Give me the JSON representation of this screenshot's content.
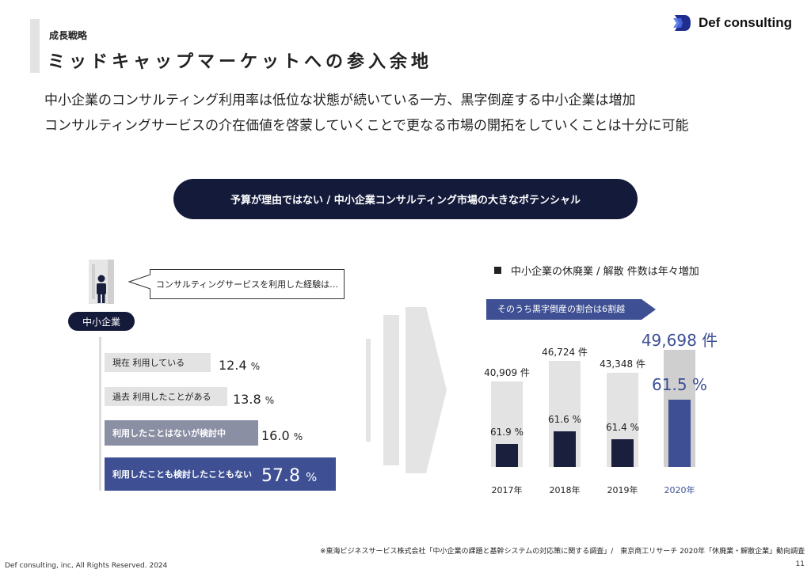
{
  "header": {
    "section": "成長戦略",
    "title": "ミッドキャップマーケットへの参入余地",
    "logo_text": "Def consulting"
  },
  "lead": {
    "line1": "中小企業のコンサルティング利用率は低位な状態が続いている一方、黒字倒産する中小企業は増加",
    "line2": "コンサルティングサービスの介在価値を啓蒙していくことで更なる市場の開拓をしていくことは十分に可能"
  },
  "pill": {
    "text": "予算が理由ではない / 中小企業コンサルティング市場の大きなポテンシャル"
  },
  "left_panel": {
    "speech": "コンサルティングサービスを利用した経験は…",
    "badge": "中小企業",
    "icon": "person-building-icon",
    "bars": [
      {
        "label": "現在 利用している",
        "value": "12.4",
        "unit": "%",
        "share": 12.4
      },
      {
        "label": "過去 利用したことがある",
        "value": "13.8",
        "unit": "%",
        "share": 13.8
      },
      {
        "label": "利用したことはないが検討中",
        "value": "16.0",
        "unit": "%",
        "share": 16.0
      },
      {
        "label": "利用したことも検討したこともない",
        "value": "57.8",
        "unit": "%",
        "share": 57.8
      }
    ]
  },
  "right_panel": {
    "legend": "中小企業の休廃業 / 解散 件数は年々増加",
    "banner": "そのうち黒字倒産の割合は6割越",
    "chart_data": {
      "type": "bar",
      "categories": [
        "2017年",
        "2018年",
        "2019年",
        "2020年"
      ],
      "counts": [
        40909,
        46724,
        43348,
        49698
      ],
      "count_labels": [
        "40,909 件",
        "46,724 件",
        "43,348 件",
        "49,698 件"
      ],
      "profitable_share": [
        61.9,
        61.6,
        61.4,
        61.5
      ],
      "share_labels": [
        "61.9 %",
        "61.6 %",
        "61.4 %",
        "61.5 %"
      ],
      "highlight_index": 3,
      "colors": {
        "bar": "#1a1f3e",
        "highlight": "#3e5093",
        "background": "#e3e3e3"
      }
    }
  },
  "footer": {
    "source": "※東海ビジネスサービス株式会社「中小企業の課題と基幹システムの対応策に関する調査」/　東京商工リサーチ 2020年「休廃業・解散企業」動向調査",
    "copyright": "Def consulting, inc, All Rights Reserved. 2024",
    "page": "11"
  }
}
